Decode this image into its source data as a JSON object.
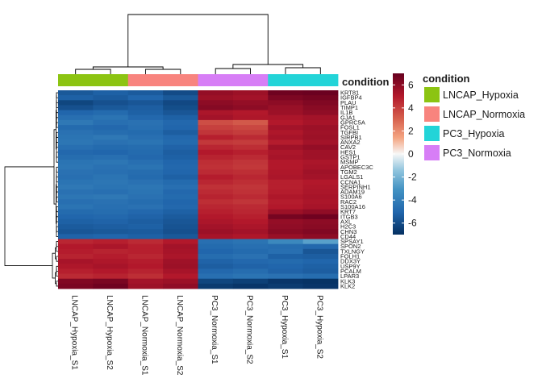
{
  "chart_data": {
    "type": "heatmap",
    "annotation_title": "condition",
    "legend_title": "condition",
    "color_scale": {
      "low": "#053061",
      "mid": "#f7f7f7",
      "high": "#67001f",
      "ticks": [
        6,
        4,
        2,
        0,
        -2,
        -4,
        -6
      ],
      "min": -7,
      "max": 7
    },
    "columns": [
      "LNCAP_Hypoxia_S1",
      "LNCAP_Hypoxia_S2",
      "LNCAP_Normoxia_S1",
      "LNCAP_Normoxia_S2",
      "PC3_Normoxia_S1",
      "PC3_Normoxia_S2",
      "PC3_Hypoxia_S1",
      "PC3_Hypoxia_S2"
    ],
    "column_condition": [
      "LNCAP_Hypoxia",
      "LNCAP_Hypoxia",
      "LNCAP_Normoxia",
      "LNCAP_Normoxia",
      "PC3_Normoxia",
      "PC3_Normoxia",
      "PC3_Hypoxia",
      "PC3_Hypoxia"
    ],
    "conditions": [
      {
        "name": "LNCAP_Hypoxia",
        "color": "#8cc412"
      },
      {
        "name": "LNCAP_Normoxia",
        "color": "#f8847e"
      },
      {
        "name": "PC3_Hypoxia",
        "color": "#23d4d8"
      },
      {
        "name": "PC3_Normoxia",
        "color": "#d77ef6"
      }
    ],
    "rows": [
      "KRT81",
      "IGFBP4",
      "PLAU",
      "TIMP1",
      "IL1B",
      "GJA1",
      "GPRC5A",
      "FOSL1",
      "TGFBI",
      "SIRPB1",
      "ANXA2",
      "CAV2",
      "HES1",
      "GSTP1",
      "MSMP",
      "APOBEC3C",
      "TGM2",
      "LGALS1",
      "CCNA1",
      "SERPINH1",
      "ADAM19",
      "S100A6",
      "RAC2",
      "S100A16",
      "KRT7",
      "ITGB3",
      "AXL",
      "H2C3",
      "CHN3",
      "CD44",
      "SPSAY1",
      "SPON2",
      "TXLNGY",
      "FOLH1",
      "DDX3Y",
      "USP9Y",
      "PCALM",
      "LPAR3",
      "KLK3",
      "KLK2"
    ],
    "values": [
      [
        -5.5,
        -5.2,
        -5.4,
        -6.0,
        5.8,
        5.6,
        6.8,
        6.9
      ],
      [
        -5.2,
        -5.4,
        -5.0,
        -5.5,
        5.6,
        5.4,
        6.4,
        6.6
      ],
      [
        -6.2,
        -5.8,
        -5.6,
        -6.1,
        6.0,
        5.8,
        6.0,
        6.3
      ],
      [
        -5.8,
        -5.5,
        -5.3,
        -5.9,
        6.2,
        6.0,
        5.7,
        6.1
      ],
      [
        -5.0,
        -4.8,
        -5.2,
        -5.6,
        5.2,
        5.0,
        5.6,
        5.9
      ],
      [
        -4.6,
        -4.4,
        -4.9,
        -5.2,
        5.4,
        5.1,
        5.2,
        5.4
      ],
      [
        -4.2,
        -4.6,
        -4.5,
        -4.9,
        3.5,
        3.2,
        5.0,
        5.3
      ],
      [
        -4.8,
        -4.9,
        -4.6,
        -5.0,
        3.9,
        3.7,
        5.4,
        5.6
      ],
      [
        -4.5,
        -4.7,
        -4.8,
        -5.3,
        4.2,
        4.0,
        5.1,
        5.5
      ],
      [
        -4.4,
        -4.2,
        -4.6,
        -4.9,
        4.8,
        4.5,
        5.3,
        5.6
      ],
      [
        -4.3,
        -4.5,
        -4.4,
        -4.8,
        4.1,
        4.0,
        4.9,
        5.4
      ],
      [
        -4.6,
        -4.8,
        -4.7,
        -5.1,
        4.6,
        4.4,
        5.5,
        5.8
      ],
      [
        -4.9,
        -5.0,
        -4.8,
        -5.3,
        5.0,
        4.8,
        5.2,
        5.5
      ],
      [
        -4.7,
        -4.6,
        -4.9,
        -5.2,
        4.7,
        4.5,
        5.3,
        5.5
      ],
      [
        -4.4,
        -4.3,
        -4.6,
        -5.0,
        4.4,
        4.2,
        5.0,
        5.2
      ],
      [
        -4.3,
        -4.5,
        -4.4,
        -4.9,
        4.3,
        4.1,
        5.0,
        5.3
      ],
      [
        -4.5,
        -4.6,
        -4.7,
        -5.0,
        4.5,
        4.4,
        5.1,
        5.5
      ],
      [
        -4.6,
        -4.4,
        -4.8,
        -5.2,
        4.9,
        4.6,
        5.2,
        5.4
      ],
      [
        -4.4,
        -4.3,
        -4.5,
        -4.8,
        4.6,
        4.4,
        4.8,
        5.0
      ],
      [
        -4.2,
        -4.4,
        -4.3,
        -4.6,
        4.3,
        4.2,
        4.8,
        5.1
      ],
      [
        -4.5,
        -4.6,
        -4.4,
        -4.9,
        4.5,
        4.3,
        4.9,
        5.2
      ],
      [
        -4.3,
        -4.2,
        -4.5,
        -4.8,
        4.7,
        4.5,
        5.1,
        5.3
      ],
      [
        -4.6,
        -4.5,
        -4.7,
        -5.0,
        4.4,
        4.2,
        4.9,
        5.2
      ],
      [
        -4.4,
        -4.6,
        -4.5,
        -4.9,
        4.6,
        4.5,
        5.0,
        5.3
      ],
      [
        -4.8,
        -4.7,
        -4.9,
        -5.2,
        4.8,
        4.6,
        5.6,
        5.9
      ],
      [
        -5.0,
        -4.9,
        -5.1,
        -5.4,
        5.0,
        4.8,
        6.6,
        6.8
      ],
      [
        -5.2,
        -5.1,
        -5.3,
        -5.6,
        5.2,
        5.0,
        5.8,
        6.0
      ],
      [
        -5.4,
        -5.3,
        -5.2,
        -5.7,
        5.4,
        5.2,
        5.9,
        6.1
      ],
      [
        -5.6,
        -5.5,
        -5.4,
        -5.8,
        5.6,
        5.4,
        6.1,
        6.3
      ],
      [
        -5.1,
        -5.0,
        -5.2,
        -5.5,
        5.3,
        5.1,
        5.7,
        6.0
      ],
      [
        4.6,
        4.8,
        4.5,
        5.0,
        -4.6,
        -4.4,
        -3.5,
        -2.6
      ],
      [
        5.0,
        5.2,
        4.8,
        5.4,
        -4.8,
        -4.6,
        -4.7,
        -4.9
      ],
      [
        4.9,
        4.7,
        4.8,
        5.3,
        -5.0,
        -4.8,
        -4.6,
        -5.6
      ],
      [
        4.7,
        4.9,
        4.6,
        5.2,
        -4.7,
        -4.5,
        -5.2,
        -5.3
      ],
      [
        5.3,
        5.1,
        4.9,
        5.5,
        -5.1,
        -4.9,
        -4.8,
        -5.0
      ],
      [
        5.1,
        5.3,
        5.0,
        5.6,
        -5.3,
        -5.1,
        -5.0,
        -5.2
      ],
      [
        4.8,
        5.0,
        4.7,
        5.3,
        -4.9,
        -4.7,
        -5.1,
        -5.3
      ],
      [
        4.5,
        4.7,
        4.4,
        5.0,
        -4.6,
        -4.4,
        -4.5,
        -4.7
      ],
      [
        6.3,
        6.5,
        5.4,
        5.6,
        -6.2,
        -6.4,
        -6.8,
        -6.9
      ],
      [
        6.5,
        6.8,
        5.6,
        5.9,
        -6.6,
        -6.8,
        -6.6,
        -6.8
      ]
    ],
    "row_dendrogram": {
      "left": [
        0,
        29
      ],
      "right": [
        30,
        39
      ],
      "merge_level": 0
    }
  }
}
